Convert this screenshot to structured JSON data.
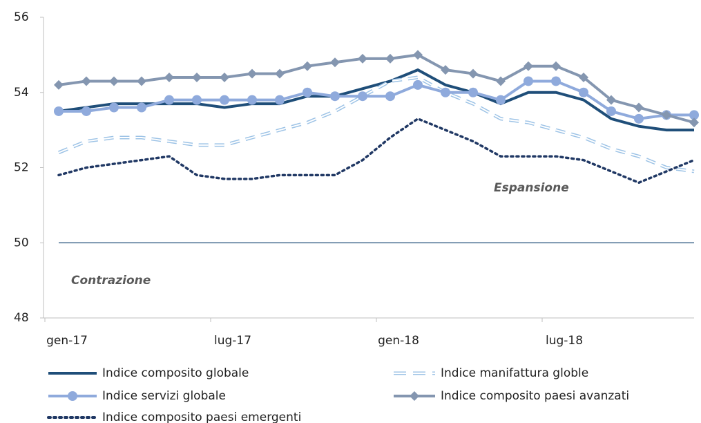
{
  "chart_data": {
    "type": "line",
    "categories": [
      "gen-17",
      null,
      null,
      null,
      null,
      null,
      "lug-17",
      null,
      null,
      null,
      null,
      null,
      "gen-18",
      null,
      null,
      null,
      null,
      null,
      "lug-18",
      null,
      null,
      null,
      null,
      null
    ],
    "ylim": [
      48,
      56
    ],
    "yticks": [
      48,
      50,
      52,
      54,
      56
    ],
    "hline": 50,
    "annotations": [
      "Espansione",
      "Contrazione"
    ],
    "series": [
      {
        "name": "Indice composito globale",
        "color": "#1f4e79",
        "style": "solid",
        "marker": "none",
        "values": [
          53.5,
          53.6,
          53.7,
          53.7,
          53.7,
          53.7,
          53.6,
          53.7,
          53.7,
          53.9,
          53.9,
          54.1,
          54.3,
          54.6,
          54.2,
          54.0,
          53.7,
          54.0,
          54.0,
          53.8,
          53.3,
          53.1,
          53.0,
          53.0
        ]
      },
      {
        "name": "Indice manifattura globle",
        "color": "#9dc3e6",
        "style": "dashed",
        "marker": "none",
        "values": [
          52.4,
          52.7,
          52.8,
          52.8,
          52.7,
          52.6,
          52.6,
          52.8,
          53.0,
          53.2,
          53.5,
          53.9,
          54.3,
          54.4,
          54.0,
          53.7,
          53.3,
          53.2,
          53.0,
          52.8,
          52.5,
          52.3,
          52.0,
          51.9
        ]
      },
      {
        "name": "Indice servizi globale",
        "color": "#8faadc",
        "style": "solid",
        "marker": "circle",
        "values": [
          53.5,
          53.5,
          53.6,
          53.6,
          53.8,
          53.8,
          53.8,
          53.8,
          53.8,
          54.0,
          53.9,
          53.9,
          53.9,
          54.2,
          54.0,
          54.0,
          53.8,
          54.3,
          54.3,
          54.0,
          53.5,
          53.3,
          53.4,
          53.4
        ]
      },
      {
        "name": "Indice composito paesi avanzati",
        "color": "#8496b0",
        "style": "solid",
        "marker": "diamond",
        "values": [
          54.2,
          54.3,
          54.3,
          54.3,
          54.4,
          54.4,
          54.4,
          54.5,
          54.5,
          54.7,
          54.8,
          54.9,
          54.9,
          55.0,
          54.6,
          54.5,
          54.3,
          54.7,
          54.7,
          54.4,
          53.8,
          53.6,
          53.4,
          53.2
        ]
      },
      {
        "name": "Indice composito paesi emergenti",
        "color": "#203864",
        "style": "dotted",
        "marker": "none",
        "values": [
          51.8,
          52.0,
          52.1,
          52.2,
          52.3,
          51.8,
          51.7,
          51.7,
          51.8,
          51.8,
          51.8,
          52.2,
          52.8,
          53.3,
          53.0,
          52.7,
          52.3,
          52.3,
          52.3,
          52.2,
          51.9,
          51.6,
          51.9,
          52.2
        ]
      }
    ]
  }
}
